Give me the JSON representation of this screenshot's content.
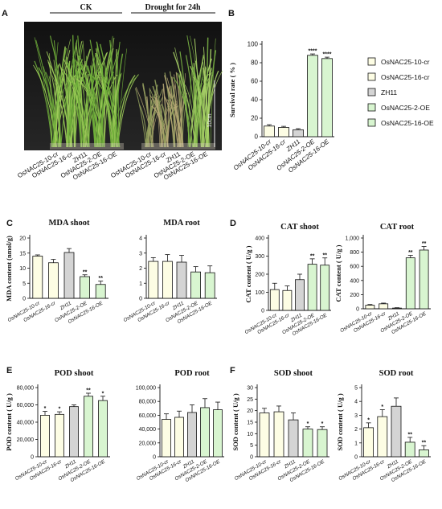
{
  "panels": {
    "A": "A",
    "B": "B",
    "C": "C",
    "D": "D",
    "E": "E",
    "F": "F"
  },
  "photo": {
    "ck_label": "CK",
    "drought_label": "Drought for 24h",
    "scale_label": "10cm",
    "categories": [
      "OsNAC25-10-cr",
      "OsNAC25-16-cr",
      "ZH11",
      "OsNAC25-2-OE",
      "OsNAC25-16-OE"
    ]
  },
  "legend": [
    {
      "name": "OsNAC25-10-cr",
      "color": "#fdfde4"
    },
    {
      "name": "OsNAC25-16-cr",
      "color": "#fdfde4"
    },
    {
      "name": "ZH11",
      "color": "#d4d4d4"
    },
    {
      "name": "OsNAC25-2-OE",
      "color": "#d8f5d0"
    },
    {
      "name": "OsNAC25-16-OE",
      "color": "#d8f5d0"
    }
  ],
  "colors": [
    "#fdfde4",
    "#fdfde4",
    "#d4d4d4",
    "#d8f5d0",
    "#d8f5d0"
  ],
  "chart_data": [
    {
      "id": "B",
      "type": "bar",
      "title": "",
      "ylabel": "Survival rate ( % )",
      "ylim": [
        0,
        100
      ],
      "ticks": [
        0,
        20,
        40,
        60,
        80,
        100
      ],
      "tick_labels": [
        "0",
        "20",
        "40",
        "60",
        "80",
        "100"
      ],
      "categories": [
        "OsNAC25-10-cr",
        "OsNAC25-16-cr",
        "ZH11",
        "OsNAC25-2-OE",
        "OsNAC25-16-OE"
      ],
      "values": [
        11.5,
        10,
        7.5,
        88,
        84.5
      ],
      "errors": [
        1.5,
        1.2,
        1.2,
        1.5,
        1.5
      ],
      "sig": [
        "",
        "",
        "",
        "****",
        "****"
      ]
    },
    {
      "id": "C1",
      "type": "bar",
      "title": "MDA shoot",
      "ylabel": "MDA content (nmol/g)",
      "ylim": [
        0,
        20
      ],
      "ticks": [
        0,
        5,
        10,
        15,
        20
      ],
      "tick_labels": [
        "0",
        "5",
        "10",
        "15",
        "20"
      ],
      "categories": [
        "OsNAC25-10-cr",
        "OsNAC25-16-cr",
        "ZH11",
        "OsNAC25-2-OE",
        "OsNAC25-16-OE"
      ],
      "values": [
        14,
        11.8,
        15.2,
        7.2,
        4.6
      ],
      "errors": [
        0.4,
        1.1,
        1.3,
        0.6,
        1.1
      ],
      "sig": [
        "",
        "",
        "",
        "**",
        "**"
      ]
    },
    {
      "id": "C2",
      "type": "bar",
      "title": "MDA root",
      "ylabel": "",
      "ylim": [
        0,
        4
      ],
      "ticks": [
        0,
        1,
        2,
        3,
        4
      ],
      "tick_labels": [
        "0",
        "1",
        "2",
        "3",
        "4"
      ],
      "categories": [
        "OsNAC25-10-cr",
        "OsNAC25-16-cr",
        "ZH11",
        "OsNAC25-2-OE",
        "OsNAC25-16-OE"
      ],
      "values": [
        2.45,
        2.45,
        2.4,
        1.75,
        1.7
      ],
      "errors": [
        0.25,
        0.45,
        0.45,
        0.35,
        0.45
      ],
      "sig": [
        "",
        "",
        "",
        "",
        ""
      ]
    },
    {
      "id": "D1",
      "type": "bar",
      "title": "CAT shoot",
      "ylabel": "CAT content ( U/g )",
      "ylim": [
        0,
        400
      ],
      "ticks": [
        0,
        100,
        200,
        300,
        400
      ],
      "tick_labels": [
        "0",
        "100",
        "200",
        "300",
        "400"
      ],
      "categories": [
        "OsNAC25-10-cr",
        "OsNAC25-16-cr",
        "ZH11",
        "OsNAC25-2-OE",
        "OsNAC25-16-OE"
      ],
      "values": [
        115,
        110,
        170,
        255,
        250
      ],
      "errors": [
        35,
        25,
        30,
        30,
        40
      ],
      "sig": [
        "",
        "",
        "",
        "**",
        "**"
      ]
    },
    {
      "id": "D2",
      "type": "bar",
      "title": "CAT root",
      "ylabel": "CAT content ( U/g )",
      "ylim": [
        0,
        1000
      ],
      "ticks": [
        0,
        200,
        400,
        600,
        800,
        1000
      ],
      "tick_labels": [
        "0",
        "200",
        "400",
        "600",
        "800",
        "1,000"
      ],
      "categories": [
        "OsNAC25-10-cr",
        "OsNAC25-16-cr",
        "ZH11",
        "OsNAC25-2-OE",
        "OsNAC25-16-OE"
      ],
      "values": [
        50,
        70,
        10,
        720,
        830
      ],
      "errors": [
        10,
        10,
        5,
        35,
        50
      ],
      "sig": [
        "",
        "",
        "",
        "**",
        "**"
      ]
    },
    {
      "id": "E1",
      "type": "bar",
      "title": "POD shoot",
      "ylabel": "POD content ( U/g )",
      "ylim": [
        0,
        80000
      ],
      "ticks": [
        0,
        20000,
        40000,
        60000,
        80000
      ],
      "tick_labels": [
        "0",
        "20,000",
        "40,000",
        "60,000",
        "80,000"
      ],
      "categories": [
        "OsNAC25-10-cr",
        "OsNAC25-16-cr",
        "ZH11",
        "OsNAC25-2-OE",
        "OsNAC25-16-OE"
      ],
      "values": [
        48000,
        49000,
        58000,
        70000,
        65000
      ],
      "errors": [
        4500,
        3000,
        2000,
        3500,
        5000
      ],
      "sig": [
        "*",
        "*",
        "",
        "**",
        "*"
      ]
    },
    {
      "id": "E2",
      "type": "bar",
      "title": "POD root",
      "ylabel": "",
      "ylim": [
        0,
        100000
      ],
      "ticks": [
        0,
        20000,
        40000,
        60000,
        80000,
        100000
      ],
      "tick_labels": [
        "0",
        "20,000",
        "40,000",
        "60,000",
        "80,000",
        "100,000"
      ],
      "categories": [
        "OsNAC25-10-cr",
        "OsNAC25-16-cr",
        "ZH11",
        "OsNAC25-2-OE",
        "OsNAC25-16-OE"
      ],
      "values": [
        54000,
        57000,
        64000,
        71000,
        68000
      ],
      "errors": [
        8000,
        9000,
        11000,
        13000,
        11000
      ],
      "sig": [
        "",
        "",
        "",
        "",
        ""
      ]
    },
    {
      "id": "F1",
      "type": "bar",
      "title": "SOD shoot",
      "ylabel": "SOD content ( U/g )",
      "ylim": [
        0,
        30
      ],
      "ticks": [
        0,
        5,
        10,
        15,
        20,
        25,
        30
      ],
      "tick_labels": [
        "0",
        "5",
        "10",
        "15",
        "20",
        "25",
        "30"
      ],
      "categories": [
        "OsNAC25-10-cr",
        "OsNAC25-16-cr",
        "ZH11",
        "OsNAC25-2-OE",
        "OsNAC25-16-OE"
      ],
      "values": [
        19,
        19.5,
        16,
        12,
        11.8
      ],
      "errors": [
        2,
        2.5,
        3,
        1,
        1.2
      ],
      "sig": [
        "",
        "",
        "",
        "*",
        "*"
      ]
    },
    {
      "id": "F2",
      "type": "bar",
      "title": "SOD root",
      "ylabel": "SOD content ( U/g )",
      "ylim": [
        0,
        5
      ],
      "ticks": [
        0,
        1,
        2,
        3,
        4,
        5
      ],
      "tick_labels": [
        "0",
        "1",
        "2",
        "3",
        "4",
        "5"
      ],
      "categories": [
        "OsNAC25-10-cr",
        "OsNAC25-16-cr",
        "ZH11",
        "OsNAC25-2-OE",
        "OsNAC25-16-OE"
      ],
      "values": [
        2.1,
        2.9,
        3.65,
        1.05,
        0.5
      ],
      "errors": [
        0.35,
        0.5,
        0.6,
        0.35,
        0.3
      ],
      "sig": [
        "*",
        "*",
        "",
        "**",
        "**"
      ]
    }
  ]
}
